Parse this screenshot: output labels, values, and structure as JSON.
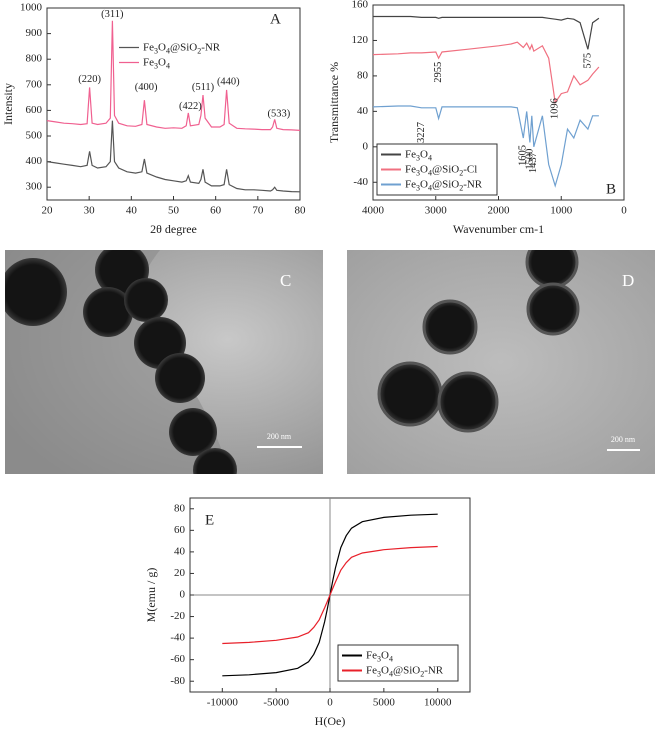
{
  "chart_data": [
    {
      "type": "line",
      "panel_label": "A",
      "xlabel": "2θ degree",
      "ylabel": "Intensity",
      "xlim": [
        20,
        80
      ],
      "xticks": [
        20,
        30,
        40,
        50,
        60,
        70,
        80
      ],
      "ylim": [
        250,
        1000
      ],
      "yticks": [
        300,
        400,
        500,
        600,
        700,
        800,
        900,
        1000
      ],
      "legend": "upper right",
      "x": [
        20,
        22,
        24,
        26,
        28,
        29.5,
        30.1,
        30.7,
        32,
        34,
        35,
        35.5,
        36,
        37,
        39,
        41,
        42.5,
        43.1,
        43.7,
        46,
        48,
        50,
        52,
        53,
        53.5,
        54,
        56,
        56.5,
        57,
        57.5,
        59,
        61,
        62,
        62.6,
        63.2,
        65,
        67,
        69,
        71,
        73,
        73.5,
        74,
        74.5,
        76,
        78,
        80
      ],
      "series": [
        {
          "name": "Fe3O4@SiO2-NR",
          "color": "#555555",
          "values": [
            400,
            395,
            390,
            385,
            380,
            385,
            440,
            385,
            375,
            380,
            400,
            560,
            400,
            375,
            360,
            355,
            360,
            410,
            355,
            340,
            330,
            325,
            320,
            325,
            345,
            320,
            315,
            330,
            370,
            320,
            305,
            305,
            310,
            370,
            310,
            295,
            290,
            290,
            288,
            285,
            290,
            300,
            288,
            285,
            283,
            282
          ]
        },
        {
          "name": "Fe3O4",
          "color": "#f06090",
          "values": [
            560,
            555,
            550,
            548,
            545,
            548,
            690,
            550,
            545,
            550,
            570,
            950,
            580,
            550,
            540,
            538,
            545,
            640,
            545,
            535,
            530,
            532,
            530,
            540,
            590,
            540,
            545,
            580,
            660,
            570,
            535,
            535,
            545,
            680,
            550,
            530,
            528,
            527,
            525,
            525,
            535,
            565,
            530,
            525,
            524,
            522
          ]
        }
      ],
      "annotations": [
        {
          "text": "(311)",
          "x": 35.5,
          "y": 975
        },
        {
          "text": "(220)",
          "x": 30.1,
          "y": 720
        },
        {
          "text": "(400)",
          "x": 43.5,
          "y": 690
        },
        {
          "text": "(422)",
          "x": 54,
          "y": 615
        },
        {
          "text": "(511)",
          "x": 57,
          "y": 690
        },
        {
          "text": "(440)",
          "x": 63,
          "y": 710
        },
        {
          "text": "(533)",
          "x": 75,
          "y": 585
        }
      ]
    },
    {
      "type": "line",
      "panel_label": "B",
      "xlabel": "Wavenumber cm-1",
      "ylabel": "Transmittance %",
      "xlim": [
        4000,
        0
      ],
      "xticks": [
        4000,
        3000,
        2000,
        1000,
        0
      ],
      "ylim": [
        -60,
        160
      ],
      "yticks": [
        -40,
        0,
        40,
        80,
        120,
        160
      ],
      "legend": "lower left",
      "x": [
        4000,
        3600,
        3400,
        3227,
        3000,
        2955,
        2900,
        2500,
        2000,
        1800,
        1700,
        1605,
        1550,
        1500,
        1470,
        1437,
        1300,
        1200,
        1096,
        1000,
        900,
        800,
        700,
        575,
        500,
        400
      ],
      "series": [
        {
          "name": "Fe3O4",
          "color": "#444444",
          "values": [
            147,
            147,
            147,
            146,
            146,
            145,
            146,
            146,
            146,
            146,
            146,
            146,
            146,
            146,
            146,
            146,
            146,
            145,
            144,
            143,
            145,
            144,
            140,
            110,
            140,
            145
          ]
        },
        {
          "name": "Fe3O4@SiO2-Cl",
          "color": "#f07080",
          "values": [
            104,
            105,
            106,
            106,
            107,
            100,
            107,
            110,
            114,
            116,
            118,
            112,
            117,
            110,
            115,
            108,
            114,
            100,
            50,
            60,
            62,
            80,
            70,
            75,
            82,
            90
          ]
        },
        {
          "name": "Fe3O4@SiO2-NR",
          "color": "#6fa0d0",
          "values": [
            45,
            46,
            46,
            44,
            44,
            32,
            45,
            45,
            45,
            45,
            44,
            10,
            40,
            5,
            35,
            0,
            35,
            -20,
            -44,
            -20,
            20,
            10,
            30,
            20,
            35,
            35
          ]
        }
      ],
      "annotations": [
        {
          "text": "2955",
          "x": 2955,
          "y": 96
        },
        {
          "text": "3227",
          "x": 3227,
          "y": 28
        },
        {
          "text": "1605",
          "x": 1605,
          "y": 2
        },
        {
          "text": "1500",
          "x": 1500,
          "y": -2
        },
        {
          "text": "1437",
          "x": 1437,
          "y": -6
        },
        {
          "text": "1096",
          "x": 1096,
          "y": 55
        },
        {
          "text": "575",
          "x": 575,
          "y": 106
        }
      ]
    },
    {
      "type": "line",
      "panel_label": "E",
      "xlabel": "H(Oe)",
      "ylabel": "M(emu / g)",
      "xlim": [
        -13000,
        13000
      ],
      "xticks": [
        -10000,
        -5000,
        0,
        5000,
        10000
      ],
      "ylim": [
        -90,
        90
      ],
      "yticks": [
        -80,
        -60,
        -40,
        -20,
        0,
        20,
        40,
        60,
        80
      ],
      "legend": "lower right",
      "zero_lines": true,
      "x": [
        -10000,
        -7500,
        -5000,
        -3000,
        -2000,
        -1500,
        -1000,
        -500,
        -250,
        0,
        250,
        500,
        1000,
        1500,
        2000,
        3000,
        5000,
        7500,
        10000
      ],
      "series": [
        {
          "name": "Fe3O4",
          "color": "#000000",
          "values": [
            -75,
            -74,
            -72,
            -68,
            -62,
            -55,
            -44,
            -25,
            -13,
            0,
            13,
            25,
            44,
            55,
            62,
            68,
            72,
            74,
            75
          ]
        },
        {
          "name": "Fe3O4@SiO2-NR",
          "color": "#e8202a",
          "values": [
            -45,
            -44,
            -42,
            -39,
            -35,
            -30,
            -23,
            -12,
            -6,
            0,
            6,
            12,
            23,
            30,
            35,
            39,
            42,
            44,
            45
          ]
        }
      ],
      "annotations": []
    }
  ],
  "images": [
    {
      "panel_label": "C",
      "scale_bar": "200 nm"
    },
    {
      "panel_label": "D",
      "scale_bar": "200 nm"
    }
  ]
}
